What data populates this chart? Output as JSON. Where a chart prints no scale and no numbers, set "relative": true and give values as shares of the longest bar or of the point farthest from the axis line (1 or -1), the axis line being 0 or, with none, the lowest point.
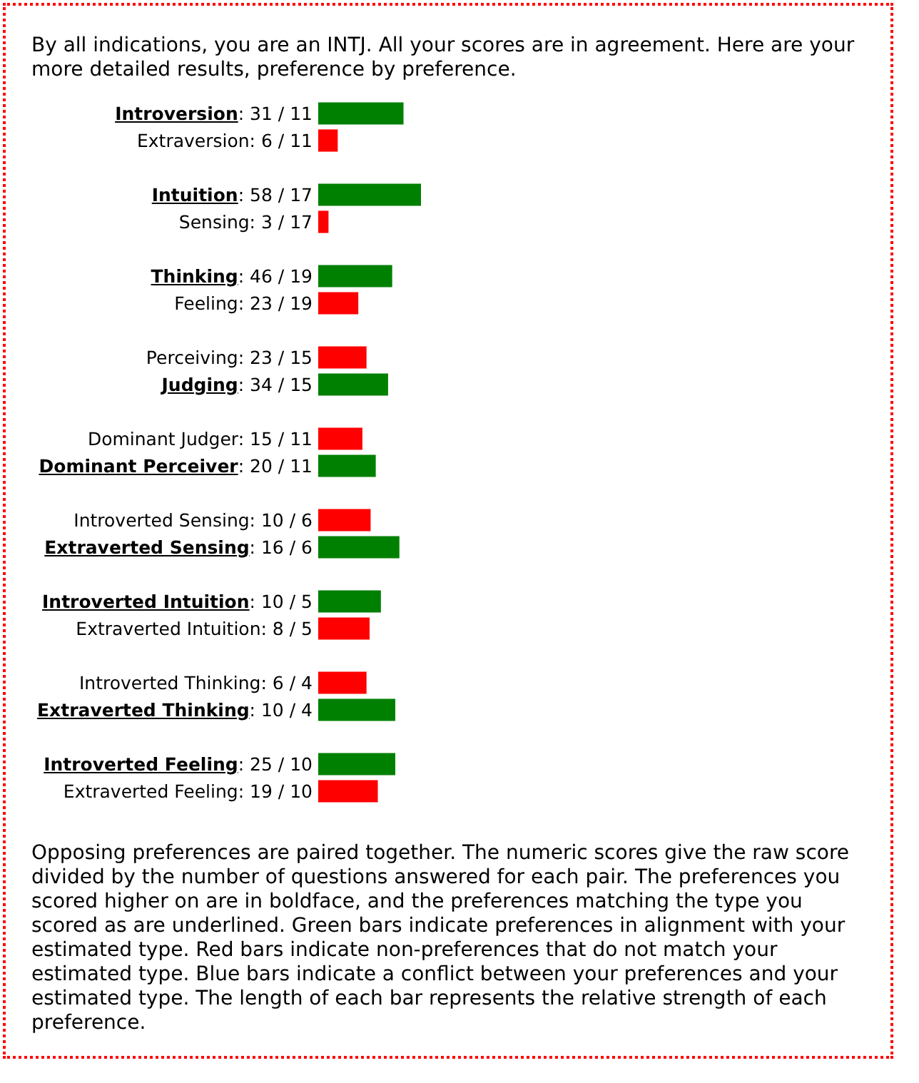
{
  "chart_data": {
    "type": "bar",
    "orientation": "horizontal",
    "relative": true,
    "title": "By all indications, you are an INTJ. All your scores are in agreement. Here are your more detailed results, preference by preference.",
    "categories": [
      "Introversion: 31 / 11",
      "Extraversion: 6 / 11",
      null,
      "Intuition: 58 / 17",
      "Sensing: 3 / 17",
      null,
      "Thinking: 46 / 19",
      "Feeling: 23 / 19",
      null,
      "Perceiving: 23 / 15",
      "Judging: 34 / 15",
      null,
      "Dominant Judger: 15 / 11",
      "Dominant Perceiver: 20 / 11",
      null,
      "Introverted Sensing: 10 / 6",
      "Extraverted Sensing: 16 / 6",
      null,
      "Introverted Intuition: 10 / 5",
      "Extraverted Intuition: 8 / 5",
      null,
      "Introverted Thinking: 6 / 4",
      "Extraverted Thinking: 10 / 4",
      null,
      "Introverted Feeling: 25 / 10",
      "Extraverted Feeling: 19 / 10"
    ],
    "values": [
      0.83,
      0.19,
      null,
      1,
      0.1,
      null,
      0.72,
      0.39,
      null,
      0.47,
      0.68,
      null,
      0.43,
      0.56,
      null,
      0.51,
      0.79,
      null,
      0.61,
      0.5,
      null,
      0.47,
      0.75,
      null,
      0.75,
      0.58
    ],
    "colors": [
      "#008000",
      "#ff0000",
      null,
      "#008000",
      "#ff0000",
      null,
      "#008000",
      "#ff0000",
      null,
      "#ff0000",
      "#008000",
      null,
      "#ff0000",
      "#008000",
      null,
      "#ff0000",
      "#008000",
      null,
      "#008000",
      "#ff0000",
      null,
      "#ff0000",
      "#008000",
      null,
      "#008000",
      "#ff0000"
    ],
    "annotations": [
      "Opposing preferences are paired together. The numeric scores give the raw score divided by the number of questions answered for each pair. The preferences you scored higher on are in boldface, and the preferences matching the type you scored as are underlined. Green bars indicate preferences in alignment with your estimated type. Red bars indicate non-preferences that do not match your estimated type. Blue bars indicate a conflict between your preferences and your estimated type. The length of each bar represents the relative strength of each preference."
    ]
  }
}
